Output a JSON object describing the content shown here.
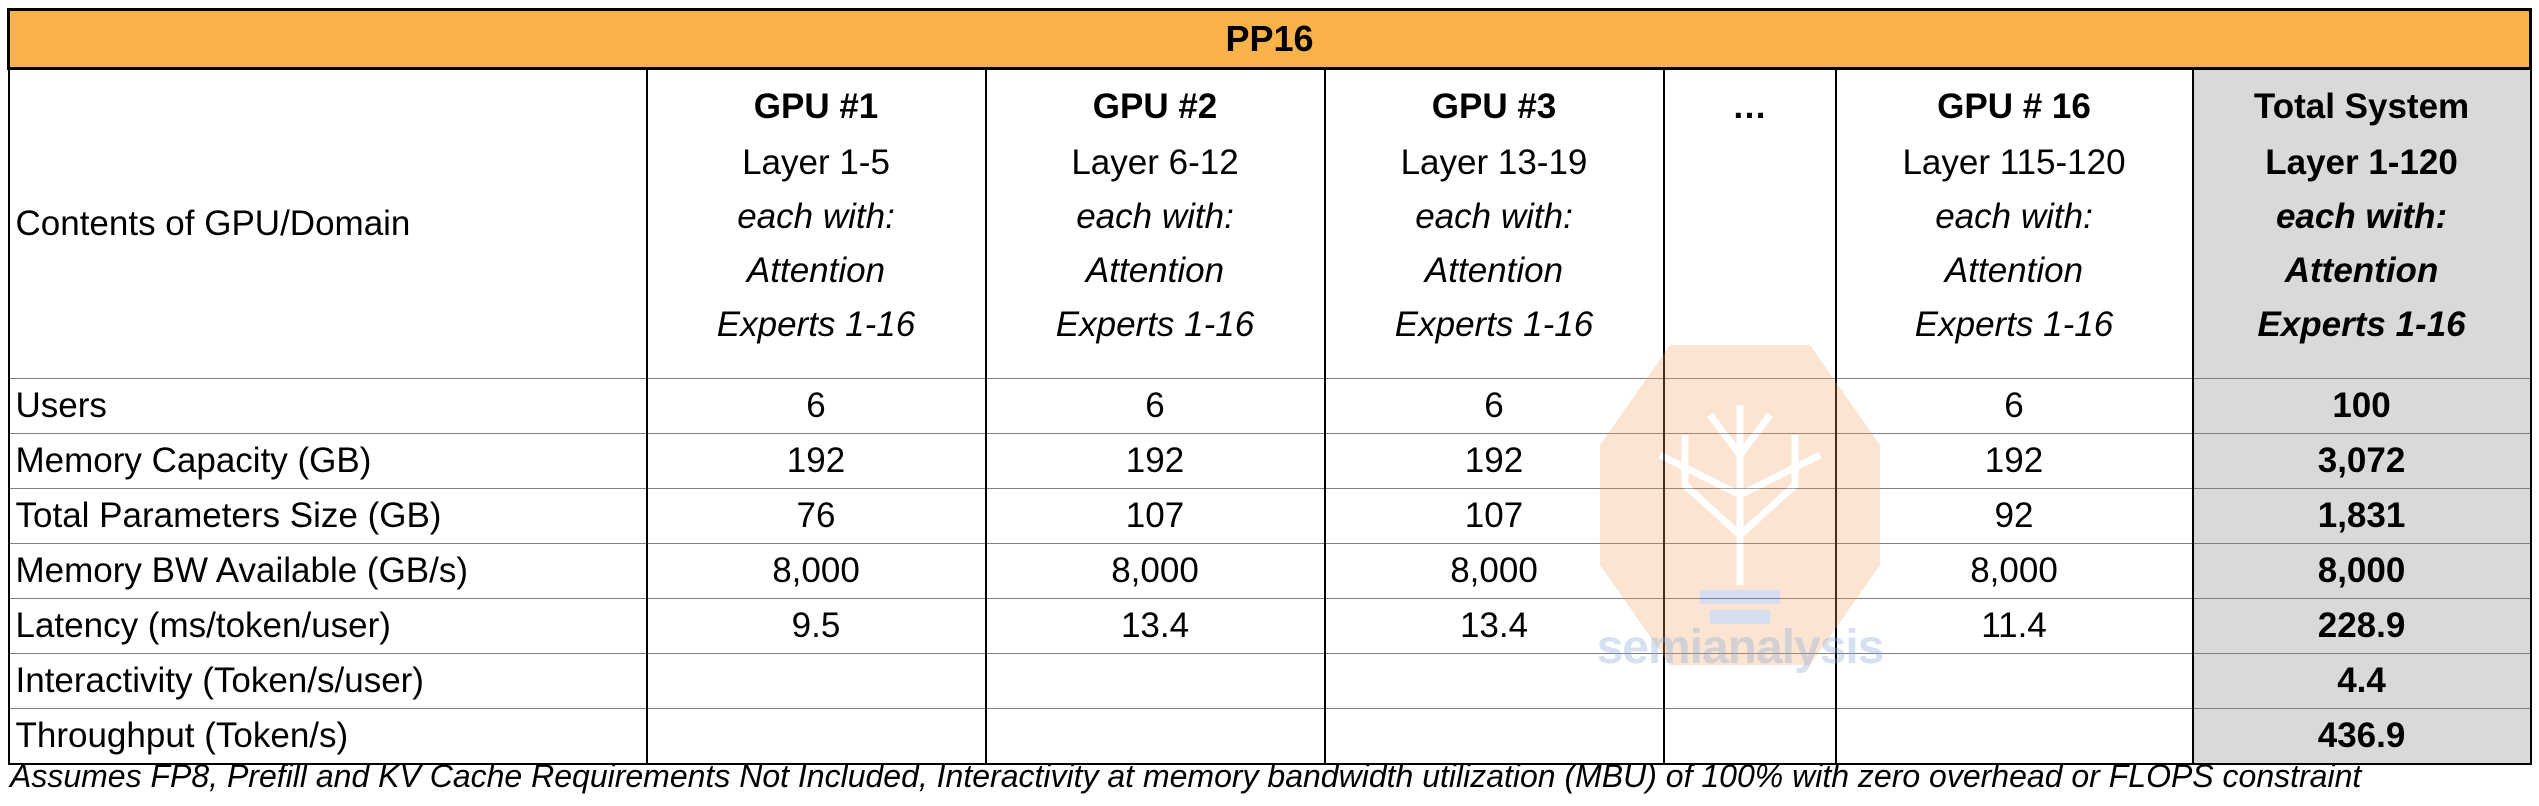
{
  "table": {
    "title": "PP16",
    "row_header_label": "Contents of GPU/Domain",
    "columns": [
      {
        "name": "GPU #1",
        "layers": "Layer 1-5",
        "each_with": "each with:",
        "attention": "Attention",
        "experts": "Experts 1-16"
      },
      {
        "name": "GPU #2",
        "layers": "Layer 6-12",
        "each_with": "each with:",
        "attention": "Attention",
        "experts": "Experts 1-16"
      },
      {
        "name": "GPU #3",
        "layers": "Layer 13-19",
        "each_with": "each with:",
        "attention": "Attention",
        "experts": "Experts 1-16"
      },
      {
        "name": "…",
        "layers": "",
        "each_with": "",
        "attention": "",
        "experts": ""
      },
      {
        "name": "GPU # 16",
        "layers": "Layer 115-120",
        "each_with": "each with:",
        "attention": "Attention",
        "experts": "Experts 1-16"
      },
      {
        "name": "Total System",
        "layers": "Layer 1-120",
        "each_with": "each with:",
        "attention": "Attention",
        "experts": "Experts 1-16"
      }
    ],
    "rows": [
      {
        "label": "Users",
        "values": [
          "6",
          "6",
          "6",
          "",
          "6",
          "100"
        ]
      },
      {
        "label": "Memory Capacity (GB)",
        "values": [
          "192",
          "192",
          "192",
          "",
          "192",
          "3,072"
        ]
      },
      {
        "label": "Total Parameters Size  (GB)",
        "values": [
          "76",
          "107",
          "107",
          "",
          "92",
          "1,831"
        ]
      },
      {
        "label": "Memory BW Available (GB/s)",
        "values": [
          "8,000",
          "8,000",
          "8,000",
          "",
          "8,000",
          "8,000"
        ]
      },
      {
        "label": "Latency (ms/token/user)",
        "values": [
          "9.5",
          "13.4",
          "13.4",
          "",
          "11.4",
          "228.9"
        ]
      },
      {
        "label": "Interactivity (Token/s/user)",
        "values": [
          "",
          "",
          "",
          "",
          "",
          "4.4"
        ]
      },
      {
        "label": "Throughput (Token/s)",
        "values": [
          "",
          "",
          "",
          "",
          "",
          "436.9"
        ]
      }
    ]
  },
  "footnote": "Assumes FP8, Prefill and KV Cache Requirements Not Included, Interactivity at memory bandwidth utilization (MBU) of 100% with zero overhead or FLOPS constraint",
  "watermark": {
    "text": "semianalysis",
    "icon": "circuit-tree-logo-icon"
  },
  "colors": {
    "title_bg": "#F9B24A",
    "total_bg": "#D9D9D9"
  }
}
